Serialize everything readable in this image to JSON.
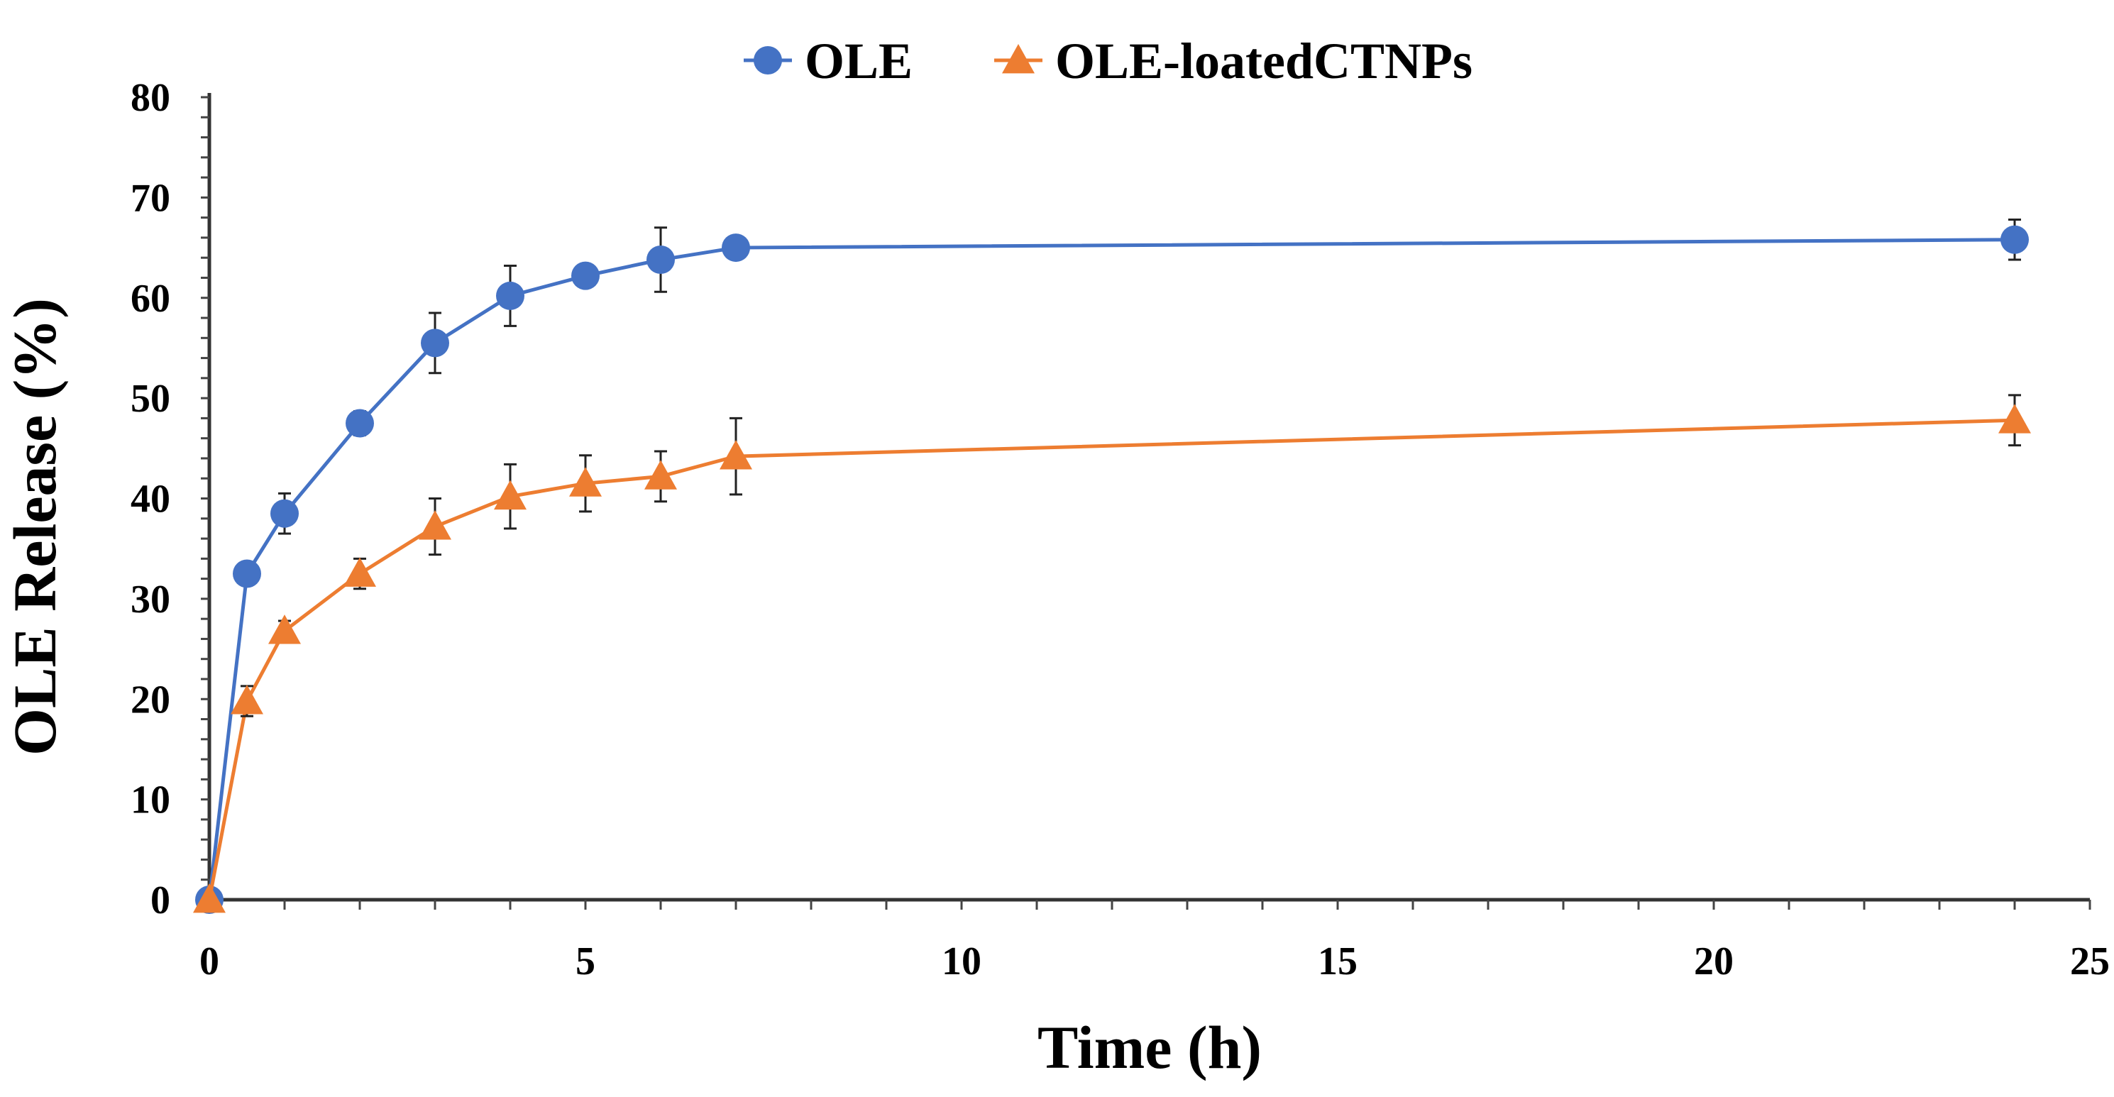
{
  "chart_data": {
    "type": "line",
    "xlabel": "Time (h)",
    "ylabel": "OLE Release (%)",
    "xlim": [
      0,
      25
    ],
    "ylim": [
      0,
      80
    ],
    "xticks": [
      0,
      5,
      10,
      15,
      20,
      25
    ],
    "yticks": [
      0,
      10,
      20,
      30,
      40,
      50,
      60,
      70,
      80
    ],
    "grid": false,
    "legend": "top",
    "series": [
      {
        "name": "OLE",
        "marker": "circle",
        "color": "#4472C4",
        "x": [
          0,
          0.5,
          1,
          2,
          3,
          4,
          5,
          6,
          7,
          24
        ],
        "y": [
          0,
          32.5,
          38.5,
          47.5,
          55.5,
          60.2,
          62.2,
          63.8,
          65,
          65.8
        ],
        "err": [
          0,
          1.0,
          2.0,
          1.2,
          3.0,
          3.0,
          1.0,
          3.2,
          1.0,
          2.0
        ]
      },
      {
        "name": "OLE-loatedCTNPs",
        "marker": "triangle",
        "color": "#ED7D31",
        "x": [
          0,
          0.5,
          1,
          2,
          3,
          4,
          5,
          6,
          7,
          24
        ],
        "y": [
          0,
          19.8,
          26.8,
          32.5,
          37.2,
          40.2,
          41.5,
          42.2,
          44.2,
          47.8
        ],
        "err": [
          0,
          1.5,
          1.0,
          1.5,
          2.8,
          3.2,
          2.8,
          2.5,
          3.8,
          2.5
        ]
      }
    ]
  }
}
